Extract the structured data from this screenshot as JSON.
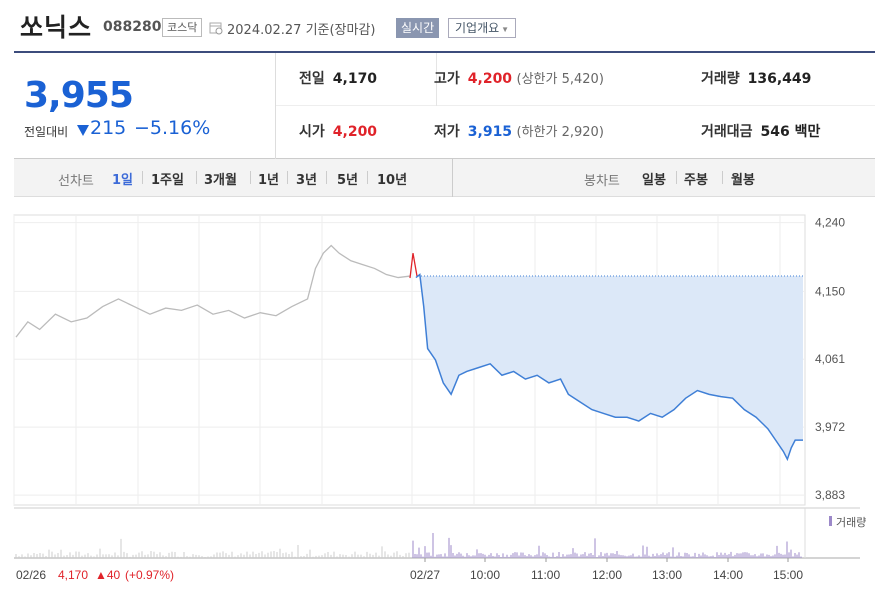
{
  "header": {
    "stock_name": "쏘닉스",
    "stock_code": "088280",
    "market": "코스닥",
    "date_text": "2024.02.27 기준(장마감)",
    "realtime_label": "실시간",
    "company_label": "기업개요"
  },
  "price": {
    "current": "3,955",
    "change_label": "전일대비",
    "change_amount": "215",
    "change_pct": "−5.16%",
    "direction": "down",
    "up_color": "#e0232a",
    "down_color": "#1a61d4"
  },
  "stats": {
    "prev_label": "전일",
    "prev": "4,170",
    "high_label": "고가",
    "high": "4,200",
    "upper_label": "(상한가 5,420)",
    "volume_label": "거래량",
    "volume": "136,449",
    "open_label": "시가",
    "open": "4,200",
    "low_label": "저가",
    "low": "3,915",
    "lower_label": "(하한가 2,920)",
    "amount_label": "거래대금",
    "amount": "546 백만"
  },
  "toolbar": {
    "period_label": "선차트",
    "periods": [
      "1일",
      "1주일",
      "3개월",
      "1년",
      "3년",
      "5년",
      "10년"
    ],
    "selected_period": "1일",
    "candle_label": "봉차트",
    "candles": [
      "일봉",
      "주봉",
      "월봉"
    ]
  },
  "chart_data": {
    "type": "line",
    "title": "",
    "ylabel": "",
    "xlabel": "",
    "ylim": [
      3870,
      4250
    ],
    "y_ticks": [
      "4,240",
      "4,150",
      "4,061",
      "3,972",
      "3,883"
    ],
    "y_tick_values": [
      4240,
      4150,
      4061,
      3972,
      3883
    ],
    "x_ticks": [
      "02/26",
      "02/27",
      "10:00",
      "11:00",
      "12:00",
      "13:00",
      "14:00",
      "15:00"
    ],
    "prev_close": 4170,
    "series": [
      {
        "previous_day": true,
        "color": "#bbbbbb",
        "points": [
          [
            0,
            4090
          ],
          [
            0.03,
            4110
          ],
          [
            0.06,
            4100
          ],
          [
            0.1,
            4120
          ],
          [
            0.14,
            4110
          ],
          [
            0.18,
            4115
          ],
          [
            0.22,
            4130
          ],
          [
            0.26,
            4140
          ],
          [
            0.3,
            4130
          ],
          [
            0.34,
            4120
          ],
          [
            0.38,
            4128
          ],
          [
            0.42,
            4125
          ],
          [
            0.46,
            4132
          ],
          [
            0.5,
            4120
          ],
          [
            0.54,
            4125
          ],
          [
            0.58,
            4115
          ],
          [
            0.62,
            4122
          ],
          [
            0.66,
            4118
          ],
          [
            0.7,
            4130
          ],
          [
            0.74,
            4140
          ],
          [
            0.76,
            4180
          ],
          [
            0.78,
            4200
          ],
          [
            0.8,
            4210
          ],
          [
            0.82,
            4200
          ],
          [
            0.85,
            4190
          ],
          [
            0.88,
            4185
          ],
          [
            0.91,
            4180
          ],
          [
            0.94,
            4172
          ],
          [
            0.97,
            4168
          ],
          [
            1.0,
            4170
          ]
        ]
      },
      {
        "name": "02/27",
        "color": "#3f7fd6",
        "fill": "#dce8f8",
        "points": [
          [
            0,
            4200
          ],
          [
            0.01,
            4168
          ],
          [
            0.02,
            4172
          ],
          [
            0.03,
            4130
          ],
          [
            0.04,
            4075
          ],
          [
            0.06,
            4060
          ],
          [
            0.08,
            4030
          ],
          [
            0.1,
            4015
          ],
          [
            0.12,
            4040
          ],
          [
            0.14,
            4045
          ],
          [
            0.17,
            4050
          ],
          [
            0.2,
            4055
          ],
          [
            0.23,
            4040
          ],
          [
            0.26,
            4045
          ],
          [
            0.29,
            4035
          ],
          [
            0.32,
            4040
          ],
          [
            0.35,
            4030
          ],
          [
            0.38,
            4035
          ],
          [
            0.4,
            4015
          ],
          [
            0.43,
            4005
          ],
          [
            0.46,
            3995
          ],
          [
            0.49,
            3990
          ],
          [
            0.52,
            3985
          ],
          [
            0.55,
            3985
          ],
          [
            0.58,
            3980
          ],
          [
            0.61,
            3990
          ],
          [
            0.64,
            3985
          ],
          [
            0.67,
            3995
          ],
          [
            0.7,
            4010
          ],
          [
            0.73,
            4020
          ],
          [
            0.76,
            4015
          ],
          [
            0.79,
            4012
          ],
          [
            0.82,
            4010
          ],
          [
            0.85,
            3995
          ],
          [
            0.88,
            3985
          ],
          [
            0.91,
            3970
          ],
          [
            0.93,
            3955
          ],
          [
            0.95,
            3940
          ],
          [
            0.96,
            3930
          ],
          [
            0.97,
            3945
          ],
          [
            0.98,
            3955
          ],
          [
            1.0,
            3955
          ]
        ]
      }
    ],
    "volume_label": "거래량",
    "volume_color": "#9c89c9",
    "footer": {
      "prev_date": "02/26",
      "prev_close": "4,170",
      "change": "▲40",
      "change_pct": "(+0.97%)"
    }
  }
}
